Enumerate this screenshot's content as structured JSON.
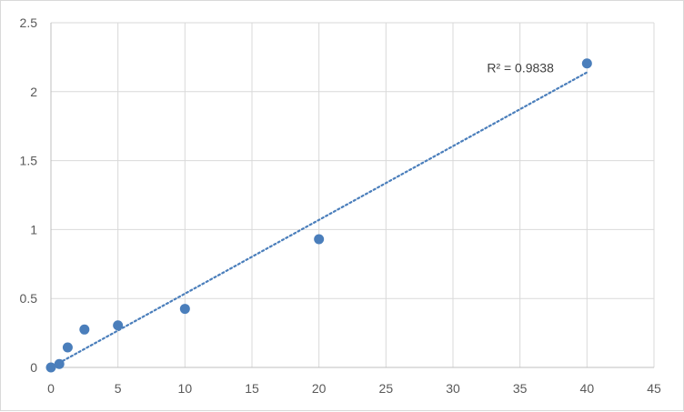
{
  "chart_data": {
    "type": "scatter",
    "title": "",
    "xlabel": "",
    "ylabel": "",
    "xlim": [
      0,
      45
    ],
    "ylim": [
      0,
      2.5
    ],
    "x_ticks": [
      "0",
      "5",
      "10",
      "15",
      "20",
      "25",
      "30",
      "35",
      "40",
      "45"
    ],
    "y_ticks": [
      "0",
      "0.5",
      "1",
      "1.5",
      "2",
      "2.5"
    ],
    "grid": true,
    "legend": "none",
    "series": [
      {
        "x": [
          0,
          0.625,
          1.25,
          2.5,
          5,
          10,
          20,
          40
        ],
        "y": [
          0.0,
          0.025,
          0.145,
          0.275,
          0.305,
          0.425,
          0.93,
          2.205
        ],
        "color": "#4a7ebb"
      }
    ],
    "trendline": {
      "type": "linear",
      "style": "dotted",
      "color": "#4a7ebb",
      "x_range": [
        0,
        40
      ],
      "slope": 0.0535,
      "intercept": 0.0,
      "annotation": "R² = 0.9838"
    }
  },
  "colors": {
    "grid": "#d9d9d9",
    "axis": "#bfbfbf",
    "tick_text": "#595959",
    "marker": "#4a7ebb"
  }
}
